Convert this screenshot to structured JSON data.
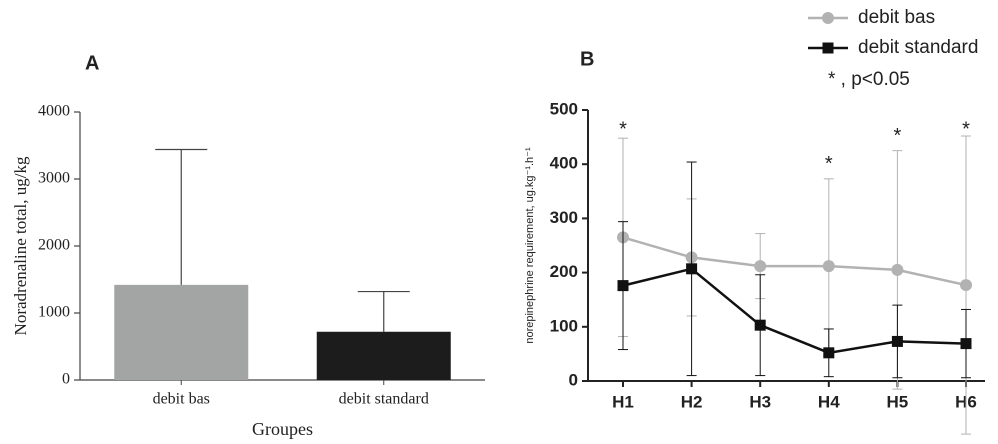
{
  "chart_data": [
    {
      "type": "bar",
      "panel": "A",
      "y_label": "Noradrenaline total, ug/kg",
      "x_label": "Groupes",
      "categories": [
        "debit bas",
        "debit standard"
      ],
      "values": [
        1420,
        720
      ],
      "errors": [
        2020,
        600
      ],
      "colors": [
        "#a3a5a4",
        "#1c1c1c"
      ],
      "ylim": [
        0,
        4000
      ],
      "yticks": [
        0,
        1000,
        2000,
        3000,
        4000
      ]
    },
    {
      "type": "line",
      "panel": "B",
      "y_label": "norepinephrine requirement, ug.kg⁻¹.h⁻¹",
      "categories": [
        "H1",
        "H2",
        "H3",
        "H4",
        "H5",
        "H6"
      ],
      "series": [
        {
          "name": "debit bas",
          "color": "#b2b2b2",
          "marker": "circle",
          "values": [
            265,
            228,
            212,
            212,
            205,
            177
          ],
          "errors": [
            183,
            108,
            60,
            161,
            220,
            275
          ]
        },
        {
          "name": "debit standard",
          "color": "#111111",
          "marker": "square",
          "values": [
            176,
            207,
            103,
            52,
            73,
            69
          ],
          "errors": [
            118,
            197,
            93,
            44,
            67,
            63
          ]
        }
      ],
      "significance": [
        "*",
        null,
        null,
        "*",
        "*",
        "*"
      ],
      "legend_note": "* , p<0.05",
      "ylim": [
        0,
        500
      ],
      "yticks": [
        0,
        100,
        200,
        300,
        400,
        500
      ]
    }
  ]
}
